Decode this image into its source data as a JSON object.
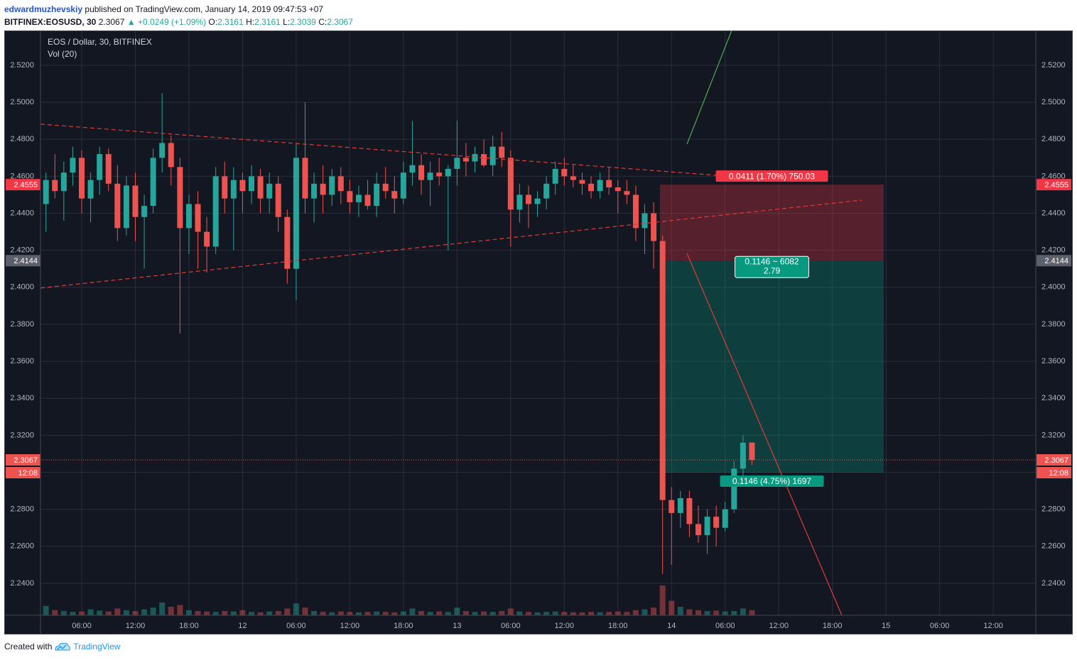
{
  "header": {
    "user": "edwardmuzhevskiy",
    "published": "published on TradingView.com, January 14, 2019 09:47:53 +07",
    "symbol": "BITFINEX:EOSUSD, 30",
    "price": "2.3067",
    "change": "▲ +0.0249 (+1.09%)",
    "ohlc": [
      {
        "label": "O:",
        "value": "2.3161"
      },
      {
        "label": "H:",
        "value": "2.3161"
      },
      {
        "label": "L:",
        "value": "2.3039"
      },
      {
        "label": "C:",
        "value": "2.3067"
      }
    ]
  },
  "footer": {
    "created": "Created with",
    "brand": "TradingView"
  },
  "chart_data": {
    "type": "candlestick",
    "title": "EOS / Dollar, 30, BITFINEX",
    "volume_title": "Vol (20)",
    "up_color": "#26a69a",
    "down_color": "#ef5350",
    "grid": true,
    "xlim": [
      1.39,
      112.76
    ],
    "ylim": [
      2.2227,
      2.5388
    ],
    "volume_lim": [
      0,
      100
    ],
    "xticks": [
      {
        "value": 6,
        "label": "06:00"
      },
      {
        "value": 12,
        "label": "12:00"
      },
      {
        "value": 18,
        "label": "18:00"
      },
      {
        "value": 24,
        "label": "12"
      },
      {
        "value": 30,
        "label": "06:00"
      },
      {
        "value": 36,
        "label": "12:00"
      },
      {
        "value": 42,
        "label": "18:00"
      },
      {
        "value": 48,
        "label": "13"
      },
      {
        "value": 54,
        "label": "06:00"
      },
      {
        "value": 60,
        "label": "12:00"
      },
      {
        "value": 66,
        "label": "18:00"
      },
      {
        "value": 72,
        "label": "14"
      },
      {
        "value": 78,
        "label": "06:00"
      },
      {
        "value": 84,
        "label": "12:00"
      },
      {
        "value": 90,
        "label": "18:00"
      },
      {
        "value": 96,
        "label": "15"
      },
      {
        "value": 102,
        "label": "06:00"
      },
      {
        "value": 108,
        "label": "12:00"
      }
    ],
    "yticks": [
      {
        "value": 2.24,
        "label": "2.2400"
      },
      {
        "value": 2.26,
        "label": "2.2600"
      },
      {
        "value": 2.28,
        "label": "2.2800"
      },
      {
        "value": 2.3,
        "label": "2.3000"
      },
      {
        "value": 2.32,
        "label": "2.3200"
      },
      {
        "value": 2.34,
        "label": "2.3400"
      },
      {
        "value": 2.36,
        "label": "2.3600"
      },
      {
        "value": 2.38,
        "label": "2.3800"
      },
      {
        "value": 2.4,
        "label": "2.4000"
      },
      {
        "value": 2.42,
        "label": "2.4200"
      },
      {
        "value": 2.44,
        "label": "2.4400"
      },
      {
        "value": 2.46,
        "label": "2.4600"
      },
      {
        "value": 2.48,
        "label": "2.4800"
      },
      {
        "value": 2.5,
        "label": "2.5000"
      },
      {
        "value": 2.52,
        "label": "2.5200"
      }
    ],
    "x": [
      2,
      3,
      4,
      5,
      6,
      7,
      8,
      9,
      10,
      11,
      12,
      13,
      14,
      15,
      16,
      17,
      18,
      19,
      20,
      21,
      22,
      23,
      24,
      25,
      26,
      27,
      28,
      29,
      30,
      31,
      32,
      33,
      34,
      35,
      36,
      37,
      38,
      39,
      40,
      41,
      42,
      43,
      44,
      45,
      46,
      47,
      48,
      49,
      50,
      51,
      52,
      53,
      54,
      55,
      56,
      57,
      58,
      59,
      60,
      61,
      62,
      63,
      64,
      65,
      66,
      67,
      68,
      69,
      70,
      71,
      72,
      73,
      74,
      75,
      76,
      77,
      78,
      79,
      80,
      81
    ],
    "open": [
      2.445,
      2.458,
      2.452,
      2.462,
      2.47,
      2.448,
      2.458,
      2.472,
      2.456,
      2.432,
      2.455,
      2.438,
      2.444,
      2.47,
      2.478,
      2.465,
      2.432,
      2.445,
      2.43,
      2.422,
      2.46,
      2.448,
      2.458,
      2.452,
      2.46,
      2.448,
      2.456,
      2.438,
      2.41,
      2.47,
      2.448,
      2.456,
      2.45,
      2.46,
      2.452,
      2.446,
      2.45,
      2.444,
      2.456,
      2.452,
      2.448,
      2.462,
      2.466,
      2.458,
      2.462,
      2.46,
      2.464,
      2.47,
      2.468,
      2.472,
      2.466,
      2.476,
      2.47,
      2.442,
      2.45,
      2.445,
      2.448,
      2.456,
      2.464,
      2.46,
      2.458,
      2.456,
      2.452,
      2.458,
      2.454,
      2.452,
      2.45,
      2.432,
      2.44,
      2.425,
      2.285,
      2.278,
      2.286,
      2.272,
      2.266,
      2.276,
      2.27,
      2.28,
      2.302,
      2.3161
    ],
    "high": [
      2.462,
      2.472,
      2.468,
      2.476,
      2.474,
      2.462,
      2.476,
      2.475,
      2.466,
      2.46,
      2.462,
      2.45,
      2.475,
      2.505,
      2.482,
      2.47,
      2.45,
      2.452,
      2.438,
      2.465,
      2.468,
      2.465,
      2.462,
      2.466,
      2.464,
      2.462,
      2.46,
      2.442,
      2.478,
      2.5,
      2.462,
      2.466,
      2.464,
      2.465,
      2.458,
      2.455,
      2.458,
      2.462,
      2.465,
      2.46,
      2.468,
      2.49,
      2.472,
      2.468,
      2.47,
      2.466,
      2.49,
      2.478,
      2.476,
      2.48,
      2.482,
      2.484,
      2.474,
      2.456,
      2.455,
      2.452,
      2.46,
      2.468,
      2.47,
      2.466,
      2.462,
      2.46,
      2.462,
      2.465,
      2.458,
      2.458,
      2.455,
      2.445,
      2.446,
      2.428,
      2.292,
      2.29,
      2.29,
      2.282,
      2.28,
      2.282,
      2.284,
      2.306,
      2.32,
      2.3161
    ],
    "low": [
      2.43,
      2.448,
      2.436,
      2.455,
      2.44,
      2.435,
      2.45,
      2.452,
      2.425,
      2.428,
      2.425,
      2.41,
      2.44,
      2.462,
      2.455,
      2.375,
      2.418,
      2.41,
      2.408,
      2.418,
      2.44,
      2.42,
      2.44,
      2.445,
      2.44,
      2.44,
      2.43,
      2.402,
      2.393,
      2.44,
      2.435,
      2.44,
      2.444,
      2.445,
      2.44,
      2.438,
      2.442,
      2.438,
      2.448,
      2.44,
      2.445,
      2.455,
      2.45,
      2.444,
      2.455,
      2.42,
      2.455,
      2.46,
      2.462,
      2.465,
      2.46,
      2.465,
      2.422,
      2.435,
      2.432,
      2.438,
      2.442,
      2.45,
      2.455,
      2.454,
      2.45,
      2.448,
      2.448,
      2.45,
      2.44,
      2.445,
      2.425,
      2.418,
      2.41,
      2.245,
      2.25,
      2.27,
      2.265,
      2.262,
      2.256,
      2.26,
      2.268,
      2.278,
      2.296,
      2.3039
    ],
    "close": [
      2.458,
      2.452,
      2.462,
      2.47,
      2.448,
      2.458,
      2.472,
      2.456,
      2.432,
      2.455,
      2.438,
      2.444,
      2.47,
      2.478,
      2.465,
      2.432,
      2.445,
      2.43,
      2.422,
      2.46,
      2.448,
      2.458,
      2.452,
      2.46,
      2.448,
      2.456,
      2.438,
      2.41,
      2.47,
      2.448,
      2.456,
      2.45,
      2.46,
      2.452,
      2.446,
      2.45,
      2.444,
      2.456,
      2.452,
      2.448,
      2.462,
      2.466,
      2.458,
      2.462,
      2.46,
      2.464,
      2.47,
      2.468,
      2.472,
      2.466,
      2.476,
      2.47,
      2.442,
      2.45,
      2.445,
      2.448,
      2.456,
      2.464,
      2.46,
      2.458,
      2.456,
      2.452,
      2.458,
      2.454,
      2.452,
      2.45,
      2.432,
      2.44,
      2.425,
      2.285,
      2.278,
      2.286,
      2.272,
      2.266,
      2.276,
      2.27,
      2.28,
      2.302,
      2.316,
      2.3067
    ],
    "volume": [
      22,
      12,
      10,
      8,
      9,
      14,
      11,
      9,
      16,
      12,
      10,
      14,
      18,
      30,
      20,
      24,
      12,
      10,
      9,
      8,
      10,
      9,
      12,
      8,
      7,
      9,
      10,
      16,
      28,
      18,
      10,
      8,
      7,
      9,
      8,
      7,
      8,
      9,
      8,
      7,
      9,
      16,
      10,
      8,
      9,
      8,
      18,
      10,
      8,
      9,
      8,
      10,
      16,
      9,
      8,
      7,
      8,
      9,
      8,
      7,
      7,
      8,
      7,
      8,
      9,
      8,
      12,
      14,
      18,
      70,
      34,
      20,
      14,
      12,
      10,
      11,
      9,
      10,
      16,
      12
    ],
    "lines": [
      {
        "x": [
          1.39,
          77.14
        ],
        "y": [
          2.4882,
          2.4605
        ],
        "color": "#e53935",
        "dashed": true
      },
      {
        "x": [
          1.39,
          93.28
        ],
        "y": [
          2.3996,
          2.4471
        ],
        "color": "#e53935",
        "dashed": true
      },
      {
        "x": [
          73.73,
          78.73
        ],
        "y": [
          2.4774,
          2.5388
        ],
        "color": "#4caf50",
        "dashed": false
      },
      {
        "x": [
          73.73,
          91.06
        ],
        "y": [
          2.4183,
          2.2227
        ],
        "color": "#e53935",
        "dashed": false
      }
    ],
    "position": {
      "x": [
        70.71,
        95.75
      ],
      "stop": 2.4555,
      "entry": 2.4144,
      "target": 2.2998,
      "stop_label": "0.0411 (1.70%) 750.03",
      "center_label": "0.1146 ~ 6082",
      "ratio_label": "2.79",
      "target_label": "0.1146 (4.75%) 1697"
    },
    "last_price": 2.3067,
    "countdown": "12:08",
    "price_markers": [
      {
        "value": 2.4555,
        "color": "#f23645"
      },
      {
        "value": 2.4144,
        "color": "#5d606b"
      },
      {
        "value": 2.3067,
        "color": "#ef5350"
      },
      {
        "value": 2.2998,
        "color": "#089981"
      }
    ]
  }
}
